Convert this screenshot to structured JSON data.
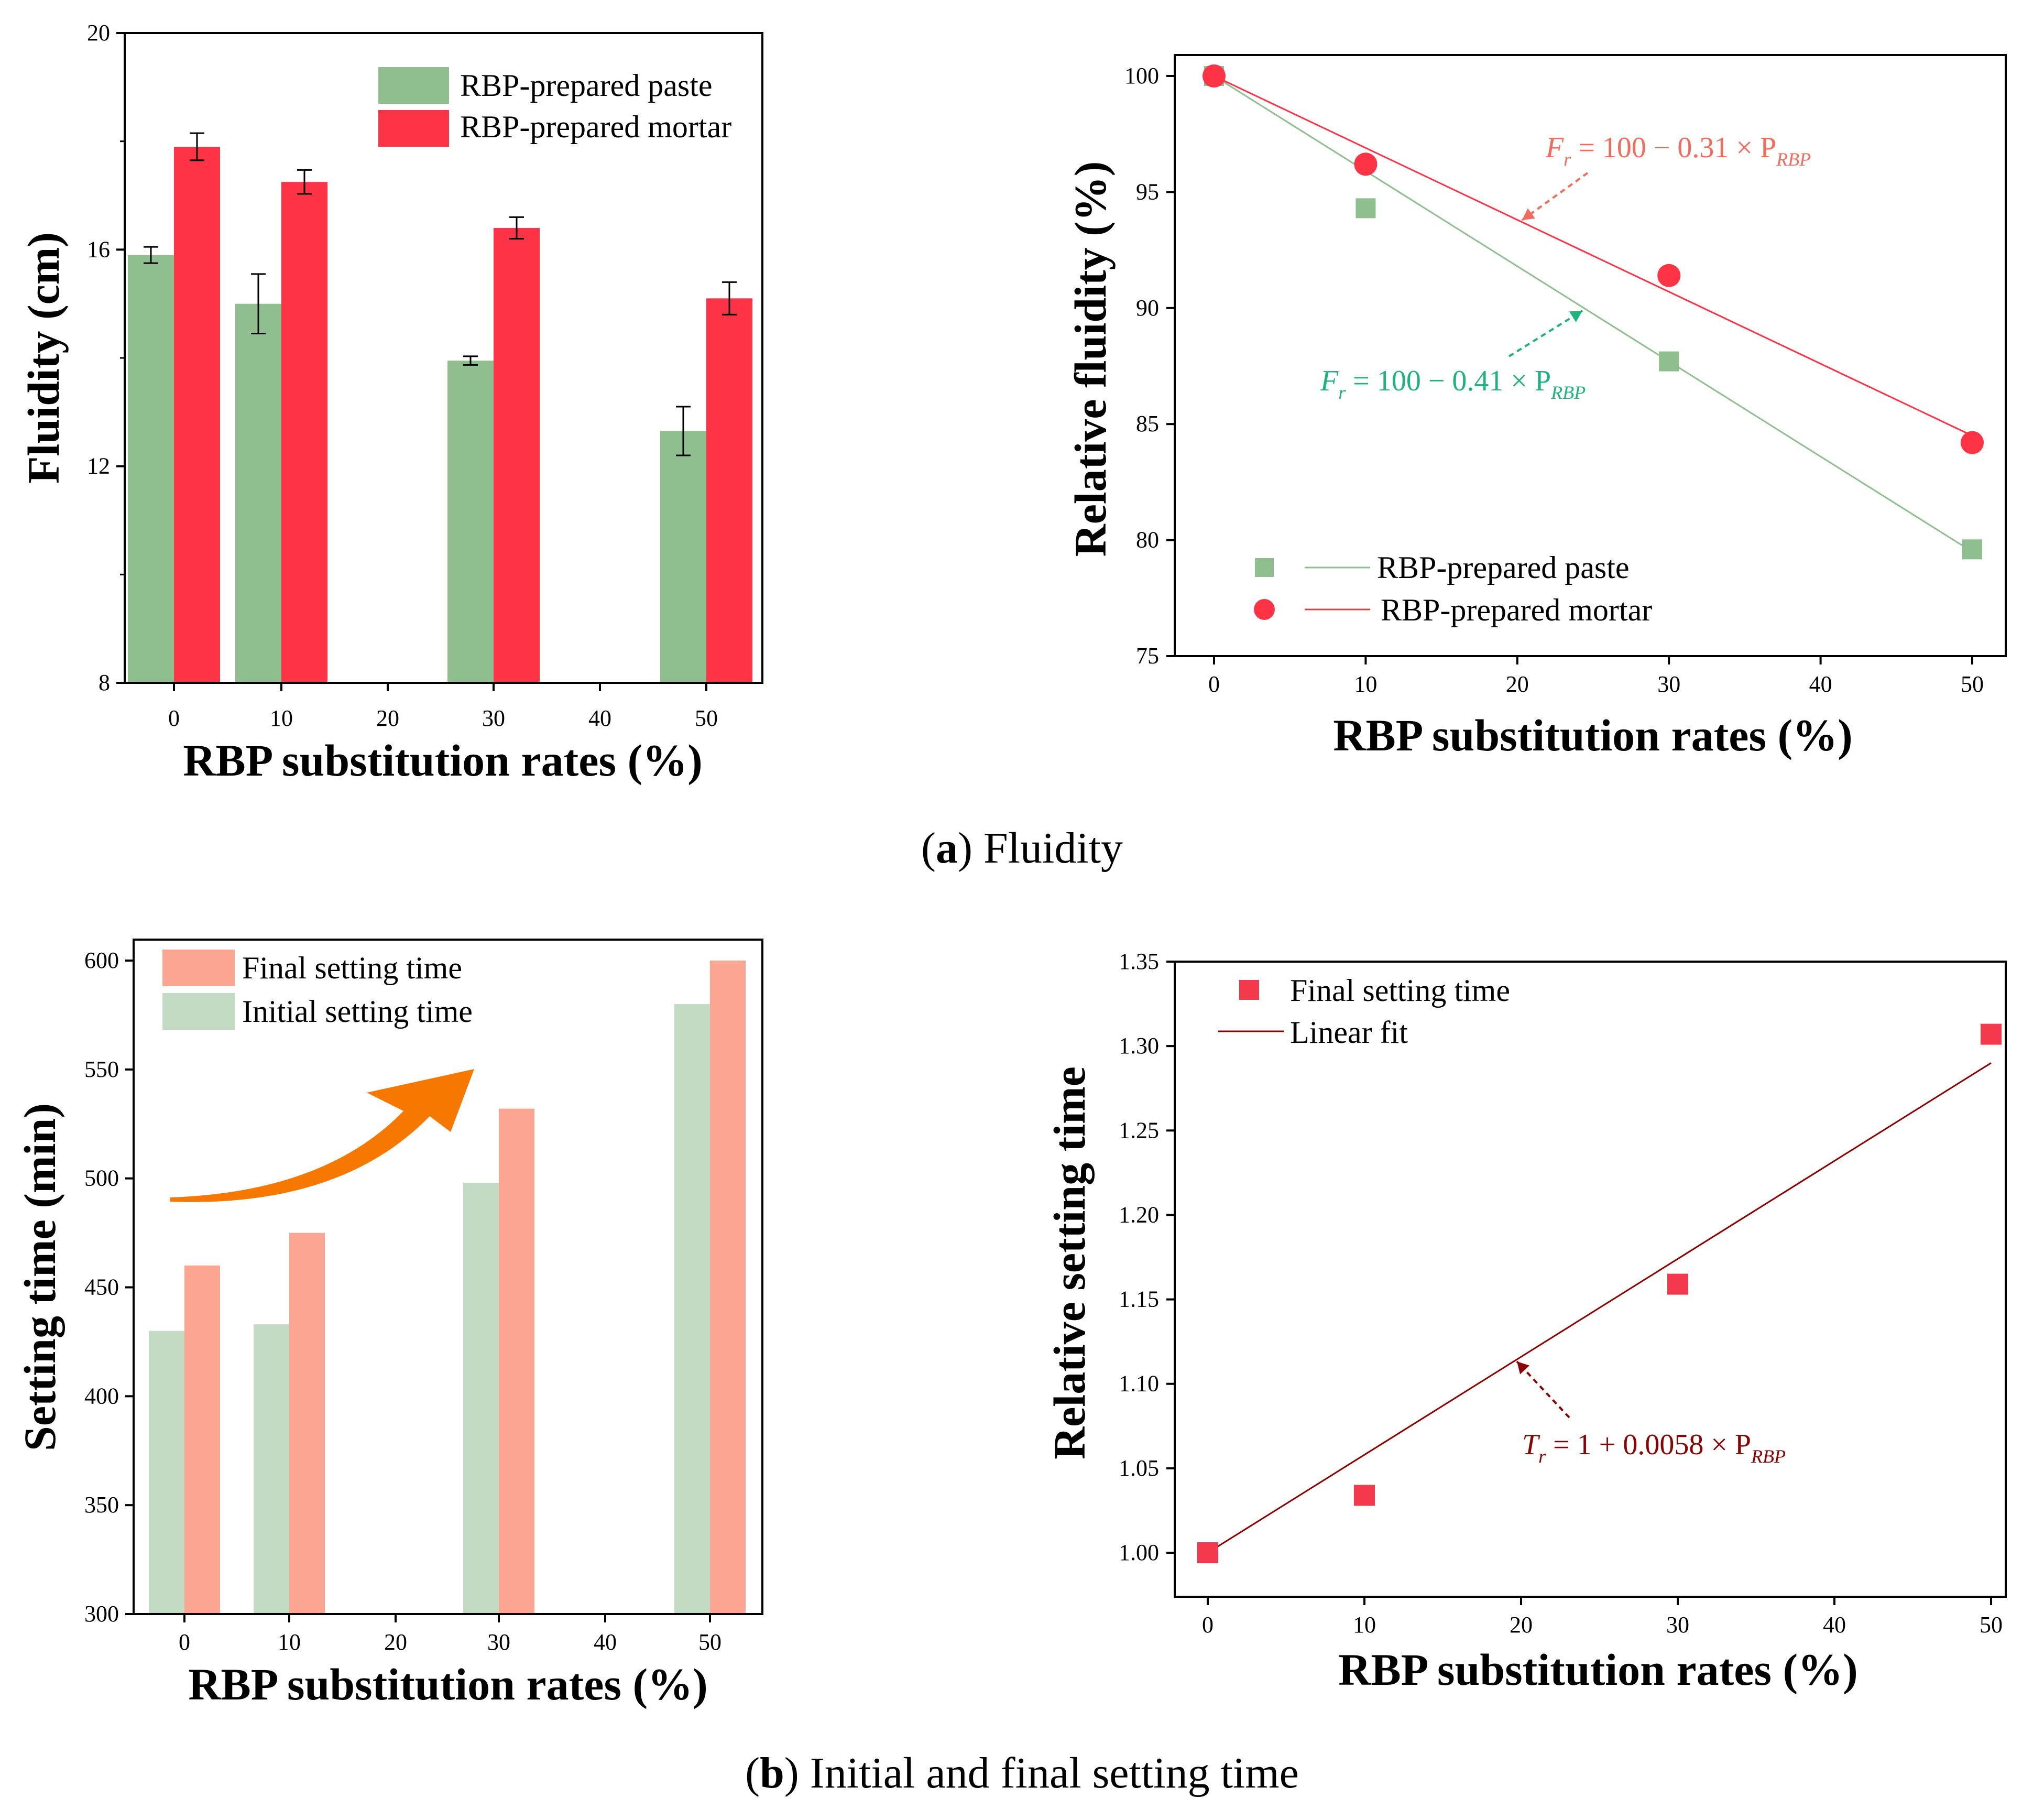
{
  "captions": {
    "a_letter": "a",
    "a_text": "Fluidity",
    "b_letter": "b",
    "b_text": "Initial and final setting time"
  },
  "colors": {
    "paste_green": "#8fbf8f",
    "mortar_red": "#ff3346",
    "final_salmon": "#fca593",
    "initial_green": "#c2dbc2",
    "arrow_orange": "#f77800",
    "fit_darkred": "#8b0000",
    "paste_eq": "#1db37a",
    "mortar_eq": "#f26b5b",
    "final_marker": "#f5394c"
  },
  "chart_data": [
    {
      "id": "a-left",
      "type": "bar",
      "title": "",
      "xlabel": "RBP substitution rates (%)",
      "ylabel": "Fluidity (cm)",
      "ylim": [
        8,
        20
      ],
      "yticks": [
        "8",
        "12",
        "16",
        "20"
      ],
      "categories": [
        "0",
        "10",
        "20",
        "30",
        "40",
        "50"
      ],
      "series": [
        {
          "name": "RBP-prepared paste",
          "values": [
            15.9,
            15.0,
            null,
            13.95,
            null,
            12.65
          ],
          "errors": [
            0.15,
            0.55,
            null,
            0.08,
            null,
            0.45
          ]
        },
        {
          "name": "RBP-prepared mortar",
          "values": [
            17.9,
            17.25,
            null,
            16.4,
            null,
            15.1
          ],
          "errors": [
            0.25,
            0.22,
            null,
            0.2,
            null,
            0.3
          ]
        }
      ],
      "legend": "top-right"
    },
    {
      "id": "a-right",
      "type": "scatter",
      "xlabel": "RBP substitution rates (%)",
      "ylabel": "Relative fluidity (%)",
      "xlim": [
        -4,
        52
      ],
      "ylim": [
        75,
        101
      ],
      "xticks": [
        "0",
        "10",
        "20",
        "30",
        "40",
        "50"
      ],
      "yticks": [
        "75",
        "80",
        "85",
        "90",
        "95",
        "100"
      ],
      "series": [
        {
          "name": "RBP-prepared paste",
          "x": [
            0,
            10,
            30,
            50
          ],
          "y": [
            100,
            94.3,
            87.7,
            79.6
          ],
          "fit": {
            "intercept": 100,
            "slope": -0.41
          }
        },
        {
          "name": "RBP-prepared mortar",
          "x": [
            0,
            10,
            30,
            50
          ],
          "y": [
            100,
            96.2,
            91.4,
            84.2
          ],
          "fit": {
            "intercept": 100,
            "slope": -0.31
          }
        }
      ],
      "annotations": {
        "mortar_eq": {
          "lhs": "F",
          "sub": "r",
          "rhs": " = 100 − 0.31 × P",
          "psub": "RBP"
        },
        "paste_eq": {
          "lhs": "F",
          "sub": "r",
          "rhs": " = 100 − 0.41 × P",
          "psub": "RBP"
        }
      },
      "legend": "bottom-left"
    },
    {
      "id": "b-left",
      "type": "bar",
      "xlabel": "RBP substitution rates (%)",
      "ylabel": "Setting time (min)",
      "ylim": [
        300,
        610
      ],
      "yticks": [
        "300",
        "350",
        "400",
        "450",
        "500",
        "550",
        "600"
      ],
      "categories": [
        "0",
        "10",
        "20",
        "30",
        "40",
        "50"
      ],
      "series": [
        {
          "name": "Initial setting time",
          "values": [
            430,
            433,
            null,
            498,
            null,
            580
          ]
        },
        {
          "name": "Final setting time",
          "values": [
            460,
            475,
            null,
            532,
            null,
            600
          ]
        }
      ],
      "legend": "top-left"
    },
    {
      "id": "b-right",
      "type": "scatter",
      "xlabel": "RBP substitution rates (%)",
      "ylabel": "Relative setting time",
      "xlim": [
        -2,
        52
      ],
      "ylim": [
        0.98,
        1.35
      ],
      "xticks": [
        "0",
        "10",
        "20",
        "30",
        "40",
        "50"
      ],
      "yticks": [
        "1.00",
        "1.05",
        "1.10",
        "1.15",
        "1.20",
        "1.25",
        "1.30",
        "1.35"
      ],
      "series": [
        {
          "name": "Final setting time",
          "x": [
            0,
            10,
            30,
            50
          ],
          "y": [
            1.0,
            1.034,
            1.159,
            1.307
          ]
        },
        {
          "name": "Linear fit",
          "fit": {
            "intercept": 1.0,
            "slope": 0.0058
          }
        }
      ],
      "annotations": {
        "fit_eq": {
          "lhs": "T",
          "sub": "r",
          "rhs": " = 1 + 0.0058 × P",
          "psub": "RBP"
        }
      },
      "legend": "top-left"
    }
  ]
}
